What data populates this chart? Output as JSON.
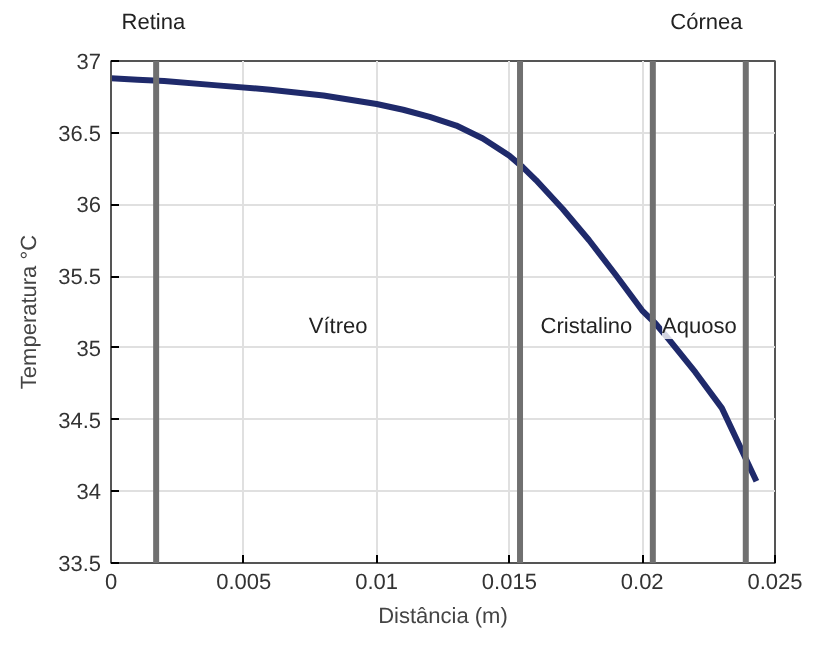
{
  "chart_data": {
    "type": "line",
    "xlabel": "Distância (m)",
    "ylabel": "Temperatura °C",
    "x": [
      0,
      0.001,
      0.002,
      0.004,
      0.006,
      0.008,
      0.01,
      0.011,
      0.012,
      0.013,
      0.014,
      0.015,
      0.0155,
      0.016,
      0.017,
      0.018,
      0.019,
      0.02,
      0.0205,
      0.021,
      0.022,
      0.023,
      0.0243
    ],
    "series": [
      {
        "color": "#1f2a6b",
        "values": [
          36.88,
          36.87,
          36.86,
          36.83,
          36.8,
          36.76,
          36.7,
          36.66,
          36.61,
          36.55,
          36.46,
          36.34,
          36.26,
          36.17,
          35.97,
          35.75,
          35.51,
          35.26,
          35.17,
          35.06,
          34.83,
          34.58,
          34.07
        ]
      }
    ],
    "xlim": [
      0,
      0.025
    ],
    "ylim": [
      33.5,
      37
    ],
    "xticks": [
      0,
      0.005,
      0.01,
      0.015,
      0.02,
      0.025
    ],
    "yticks": [
      33.5,
      34,
      34.5,
      35,
      35.5,
      36,
      36.5,
      37
    ],
    "grid": true,
    "line_style": "solid",
    "marker": "none",
    "ref_lines": [
      {
        "axis": "x",
        "value": 0.0017,
        "label": "Retina",
        "color": "#707070"
      },
      {
        "axis": "x",
        "value": 0.0154,
        "label": null,
        "color": "#707070"
      },
      {
        "axis": "x",
        "value": 0.0204,
        "label": null,
        "color": "#707070"
      },
      {
        "axis": "x",
        "value": 0.0239,
        "label": "Córnea",
        "color": "#707070"
      }
    ],
    "annotations": [
      "Vítreo",
      "Cristalino",
      "Aquoso"
    ]
  }
}
